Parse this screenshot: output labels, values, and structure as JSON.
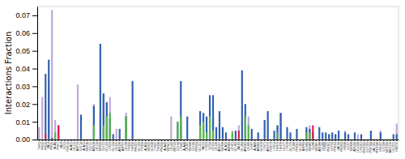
{
  "chart_data": {
    "type": "bar",
    "ylabel": "Interactions Fraction",
    "ylim": [
      0,
      0.075
    ],
    "yticks": [
      {
        "value": 0,
        "label": "0.00"
      },
      0.01,
      0.02,
      0.03,
      0.04,
      0.05,
      0.06,
      0.07
    ],
    "grid": false,
    "stacked": false,
    "categories": [
      "THR1",
      "PRO2",
      "PRO3",
      "VAL4",
      "PRO5",
      "ALA6",
      "PHE7",
      "VAL8",
      "GLY9",
      "PHE10",
      "ALA11",
      "LEU12",
      "ASP13",
      "GLY14",
      "ALA15",
      "SER16",
      "GLY17",
      "ASN18",
      "LEU19",
      "SER20",
      "GLY21",
      "GLU22",
      "LYS23",
      "GLU24",
      "LEU25",
      "ARG26",
      "ASP27",
      "LEU28",
      "TYR29",
      "THR30",
      "PRO31",
      "GLU32",
      "TYR33",
      "ALA34",
      "SER35",
      "GLN36",
      "LYS37",
      "THR38",
      "PRO39",
      "ALA40",
      "SER41",
      "LEU42",
      "MET43",
      "GLY44",
      "LYS45",
      "ALA46",
      "LEU47",
      "SER48",
      "GLY49",
      "PRO50",
      "GLU51",
      "VAL52",
      "LYS53",
      "ILE54",
      "LEU55",
      "LEU56",
      "ARG57",
      "SER58",
      "ALA59",
      "ASN60",
      "LEU61",
      "GLU62",
      "VAL63",
      "GLU64",
      "ARG65",
      "LEU66",
      "ILE67",
      "ALA68",
      "ASN69",
      "GLN70",
      "LYS71",
      "ARG72",
      "PHE73",
      "LYS74",
      "THR75",
      "THR76",
      "LEU77",
      "LYS78",
      "GLU79",
      "LEU80",
      "PHE81",
      "GLU82",
      "ASP83",
      "GLN84",
      "SER85",
      "ILE86",
      "SER87",
      "ARG88",
      "LEU89",
      "LYS90",
      "PRO91",
      "GLY92",
      "PHE93",
      "VAL94",
      "PRO95",
      "HIS96",
      "ILE97",
      "SER98",
      "ARG99",
      "LEU100",
      "LYS101",
      "PRO102",
      "GLY103",
      "PHE104",
      "VAL105",
      "PRO106",
      "HIS107",
      "ILE108",
      "SER109",
      "ARG110",
      "LEU111",
      "HIS112"
    ],
    "series": [
      {
        "color": "#c0a8d8",
        "values": [
          0.007,
          0.024,
          0.0,
          0.033,
          0.073,
          0.011,
          0.0,
          0.0,
          0.0,
          0.0,
          0.0,
          0.0,
          0.031,
          0.0,
          0.0,
          0.0,
          0.0,
          0.02,
          0.0,
          0.012,
          0.025,
          0.021,
          0.024,
          0.0,
          0.006,
          0.0,
          0.0,
          0.015,
          0.0,
          0.0,
          0.0,
          0.0,
          0.0,
          0.0,
          0.0,
          0.0,
          0.0,
          0.0,
          0.0,
          0.0,
          0.0,
          0.013,
          0.0,
          0.0,
          0.008,
          0.0,
          0.0,
          0.0,
          0.0,
          0.0,
          0.0,
          0.0,
          0.0,
          0.0,
          0.013,
          0.0,
          0.0,
          0.0,
          0.0,
          0.0,
          0.005,
          0.0,
          0.008,
          0.0,
          0.013,
          0.013,
          0.0,
          0.0,
          0.0,
          0.0,
          0.0,
          0.0,
          0.0,
          0.0,
          0.008,
          0.015,
          0.0,
          0.0,
          0.0,
          0.0,
          0.0,
          0.0,
          0.0,
          0.005,
          0.008,
          0.0,
          0.0,
          0.0,
          0.0,
          0.0,
          0.003,
          0.0,
          0.003,
          0.0,
          0.0,
          0.005,
          0.0,
          0.0,
          0.0,
          0.003,
          0.0,
          0.0,
          0.0,
          0.0,
          0.0,
          0.0,
          0.005,
          0.0,
          0.0,
          0.0,
          0.0,
          0.009
        ]
      },
      {
        "color": "#3060b0",
        "values": [
          0.0,
          0.0,
          0.037,
          0.045,
          0.001,
          0.0,
          0.008,
          0.0,
          0.0,
          0.0,
          0.0,
          0.0,
          0.0,
          0.014,
          0.0,
          0.0,
          0.0,
          0.019,
          0.0,
          0.054,
          0.026,
          0.021,
          0.012,
          0.003,
          0.0,
          0.006,
          0.0,
          0.013,
          0.0,
          0.033,
          0.0,
          0.0,
          0.0,
          0.0,
          0.0,
          0.0,
          0.0,
          0.0,
          0.0,
          0.0,
          0.0,
          0.0,
          0.0,
          0.01,
          0.033,
          0.0,
          0.013,
          0.0,
          0.0,
          0.0,
          0.016,
          0.015,
          0.013,
          0.025,
          0.025,
          0.007,
          0.016,
          0.007,
          0.004,
          0.0,
          0.0,
          0.005,
          0.0,
          0.039,
          0.02,
          0.0,
          0.006,
          0.0,
          0.004,
          0.0,
          0.011,
          0.016,
          0.0,
          0.005,
          0.008,
          0.015,
          0.0,
          0.007,
          0.004,
          0.0,
          0.006,
          0.0,
          0.0,
          0.007,
          0.006,
          0.004,
          0.0,
          0.007,
          0.004,
          0.004,
          0.003,
          0.004,
          0.003,
          0.005,
          0.0,
          0.004,
          0.003,
          0.0,
          0.004,
          0.0,
          0.003,
          0.0,
          0.0,
          0.005,
          0.0,
          0.0,
          0.004,
          0.0,
          0.0,
          0.0,
          0.003,
          0.003
        ]
      },
      {
        "color": "#5ab54b",
        "values": [
          0.0,
          0.0,
          0.0,
          0.0,
          0.0,
          0.004,
          0.0,
          0.0,
          0.0,
          0.0,
          0.0,
          0.0,
          0.0,
          0.0,
          0.0,
          0.0,
          0.0,
          0.008,
          0.0,
          0.0,
          0.008,
          0.013,
          0.015,
          0.0,
          0.0,
          0.0,
          0.0,
          0.013,
          0.0,
          0.0,
          0.0,
          0.0,
          0.0,
          0.0,
          0.0,
          0.0,
          0.0,
          0.0,
          0.0,
          0.0,
          0.0,
          0.0,
          0.0,
          0.01,
          0.013,
          0.0,
          0.0,
          0.0,
          0.0,
          0.0,
          0.008,
          0.01,
          0.004,
          0.013,
          0.005,
          0.0,
          0.0,
          0.0,
          0.0,
          0.0,
          0.004,
          0.0,
          0.0,
          0.0,
          0.013,
          0.008,
          0.0,
          0.0,
          0.0,
          0.0,
          0.0,
          0.0,
          0.0,
          0.0,
          0.004,
          0.0,
          0.0,
          0.0,
          0.0,
          0.0,
          0.0,
          0.0,
          0.0,
          0.004,
          0.004,
          0.0,
          0.0,
          0.0,
          0.0,
          0.0,
          0.0,
          0.0,
          0.0,
          0.0,
          0.0,
          0.0,
          0.0,
          0.0,
          0.0,
          0.0,
          0.0,
          0.0,
          0.0,
          0.0,
          0.0,
          0.0,
          0.0,
          0.0,
          0.0,
          0.0,
          0.0,
          0.0
        ]
      },
      {
        "color": "#e8184e",
        "values": [
          0.0,
          0.0,
          0.003,
          0.0,
          0.0,
          0.0,
          0.008,
          0.0,
          0.0,
          0.0,
          0.0,
          0.0,
          0.0,
          0.0,
          0.0,
          0.0,
          0.0,
          0.0,
          0.0,
          0.0,
          0.0,
          0.0,
          0.0,
          0.0,
          0.0,
          0.0,
          0.0,
          0.0,
          0.0,
          0.0,
          0.0,
          0.0,
          0.0,
          0.0,
          0.0,
          0.0,
          0.0,
          0.0,
          0.0,
          0.0,
          0.0,
          0.0,
          0.0,
          0.0,
          0.0,
          0.0,
          0.0,
          0.0,
          0.0,
          0.0,
          0.0,
          0.0,
          0.0,
          0.0,
          0.0,
          0.0,
          0.0,
          0.0,
          0.0,
          0.0,
          0.0,
          0.0,
          0.005,
          0.0,
          0.0,
          0.0,
          0.0,
          0.0,
          0.0,
          0.0,
          0.0,
          0.0,
          0.0,
          0.0,
          0.0,
          0.0,
          0.0,
          0.0,
          0.0,
          0.0,
          0.0,
          0.0,
          0.0,
          0.0,
          0.0,
          0.008,
          0.0,
          0.0,
          0.0,
          0.0,
          0.0,
          0.0,
          0.0,
          0.0,
          0.0,
          0.0,
          0.0,
          0.0,
          0.0,
          0.0,
          0.0,
          0.0,
          0.0,
          0.0,
          0.0,
          0.0,
          0.0,
          0.0,
          0.0,
          0.0,
          0.0,
          0.0
        ]
      }
    ]
  }
}
